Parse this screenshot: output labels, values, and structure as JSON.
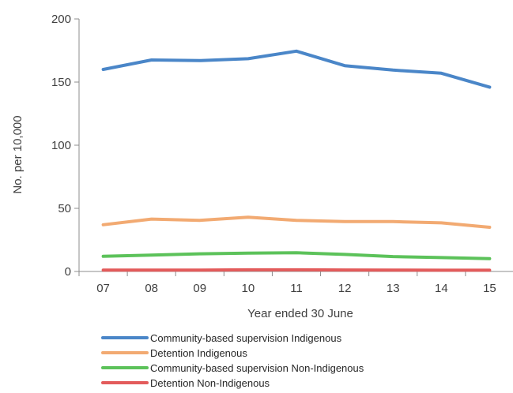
{
  "chart_data": {
    "type": "line",
    "xlabel": "Year ended 30 June",
    "ylabel": "No. per 10,000",
    "ylim": [
      0,
      200
    ],
    "yticks": [
      0,
      50,
      100,
      150,
      200
    ],
    "categories": [
      "07",
      "08",
      "09",
      "10",
      "11",
      "12",
      "13",
      "14",
      "15"
    ],
    "legend_position": "bottom",
    "grid": false,
    "series": [
      {
        "name": "Community-based supervision Indigenous",
        "color": "#4a86c8",
        "values": [
          160,
          167.5,
          167,
          168.5,
          174.5,
          163,
          159.5,
          157,
          146
        ]
      },
      {
        "name": "Detention Indigenous",
        "color": "#f2aa72",
        "values": [
          37,
          41.5,
          40.5,
          43,
          40.5,
          39.5,
          39.5,
          38.5,
          35
        ]
      },
      {
        "name": "Community-based supervision Non-Indigenous",
        "color": "#5cc25a",
        "values": [
          12,
          13,
          14,
          14.5,
          14.8,
          13.5,
          11.8,
          11,
          10.2
        ]
      },
      {
        "name": "Detention Non-Indigenous",
        "color": "#e35b5b",
        "values": [
          1.1,
          1.1,
          1.1,
          1.3,
          1.3,
          1.2,
          1.1,
          1.0,
          1.0
        ]
      }
    ]
  }
}
